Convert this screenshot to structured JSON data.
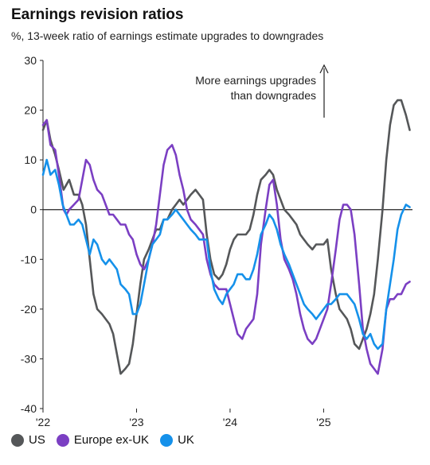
{
  "chart_data": {
    "type": "line",
    "title": "Earnings revision ratios",
    "subtitle": "%, 13-week ratio of earnings estimate upgrades to downgrades",
    "ylim": [
      -40,
      30
    ],
    "yticks": [
      30,
      20,
      10,
      0,
      -10,
      -20,
      -30,
      -40
    ],
    "xlim": [
      2022.0,
      2025.95
    ],
    "xticks": [
      {
        "value": 2022.0,
        "label": "'22"
      },
      {
        "value": 2023.0,
        "label": "'23"
      },
      {
        "value": 2024.0,
        "label": "'24"
      },
      {
        "value": 2025.0,
        "label": "'25"
      }
    ],
    "annotation": {
      "line1": "More earnings upgrades",
      "line2": "than downgrades"
    },
    "legend_position": "bottom-left",
    "series": [
      {
        "name": "US",
        "color": "#555759",
        "points": [
          [
            2022.0,
            16
          ],
          [
            2022.04,
            18
          ],
          [
            2022.08,
            14
          ],
          [
            2022.13,
            11
          ],
          [
            2022.17,
            8
          ],
          [
            2022.22,
            4
          ],
          [
            2022.28,
            6
          ],
          [
            2022.33,
            3
          ],
          [
            2022.38,
            3
          ],
          [
            2022.42,
            1
          ],
          [
            2022.46,
            -3
          ],
          [
            2022.5,
            -10
          ],
          [
            2022.54,
            -17
          ],
          [
            2022.58,
            -20
          ],
          [
            2022.63,
            -21
          ],
          [
            2022.67,
            -22
          ],
          [
            2022.71,
            -23
          ],
          [
            2022.75,
            -25
          ],
          [
            2022.79,
            -29
          ],
          [
            2022.83,
            -33
          ],
          [
            2022.88,
            -32
          ],
          [
            2022.92,
            -31
          ],
          [
            2022.96,
            -27
          ],
          [
            2023.0,
            -21
          ],
          [
            2023.04,
            -15
          ],
          [
            2023.08,
            -10
          ],
          [
            2023.13,
            -8
          ],
          [
            2023.17,
            -6
          ],
          [
            2023.21,
            -4
          ],
          [
            2023.25,
            -4
          ],
          [
            2023.29,
            -2
          ],
          [
            2023.33,
            -2
          ],
          [
            2023.38,
            0
          ],
          [
            2023.42,
            1
          ],
          [
            2023.46,
            2
          ],
          [
            2023.5,
            1
          ],
          [
            2023.54,
            2
          ],
          [
            2023.58,
            3
          ],
          [
            2023.63,
            4
          ],
          [
            2023.67,
            3
          ],
          [
            2023.71,
            2
          ],
          [
            2023.75,
            -5
          ],
          [
            2023.79,
            -10
          ],
          [
            2023.83,
            -13
          ],
          [
            2023.88,
            -14
          ],
          [
            2023.92,
            -13
          ],
          [
            2023.96,
            -11
          ],
          [
            2024.0,
            -8
          ],
          [
            2024.04,
            -6
          ],
          [
            2024.08,
            -5
          ],
          [
            2024.13,
            -5
          ],
          [
            2024.17,
            -5
          ],
          [
            2024.21,
            -4
          ],
          [
            2024.25,
            -1
          ],
          [
            2024.29,
            3
          ],
          [
            2024.33,
            6
          ],
          [
            2024.38,
            7
          ],
          [
            2024.42,
            8
          ],
          [
            2024.46,
            7
          ],
          [
            2024.5,
            4
          ],
          [
            2024.54,
            2
          ],
          [
            2024.58,
            0
          ],
          [
            2024.63,
            -1
          ],
          [
            2024.67,
            -2
          ],
          [
            2024.71,
            -3
          ],
          [
            2024.75,
            -5
          ],
          [
            2024.79,
            -6
          ],
          [
            2024.83,
            -7
          ],
          [
            2024.88,
            -8
          ],
          [
            2024.92,
            -7
          ],
          [
            2024.96,
            -7
          ],
          [
            2025.0,
            -7
          ],
          [
            2025.04,
            -6
          ],
          [
            2025.08,
            -12
          ],
          [
            2025.13,
            -17
          ],
          [
            2025.17,
            -20
          ],
          [
            2025.21,
            -21
          ],
          [
            2025.25,
            -22
          ],
          [
            2025.29,
            -24
          ],
          [
            2025.33,
            -27
          ],
          [
            2025.38,
            -28
          ],
          [
            2025.42,
            -26
          ],
          [
            2025.46,
            -24
          ],
          [
            2025.5,
            -21
          ],
          [
            2025.54,
            -17
          ],
          [
            2025.58,
            -10
          ],
          [
            2025.63,
            0
          ],
          [
            2025.67,
            10
          ],
          [
            2025.71,
            17
          ],
          [
            2025.75,
            21
          ],
          [
            2025.79,
            22
          ],
          [
            2025.83,
            22
          ],
          [
            2025.88,
            19
          ],
          [
            2025.92,
            16
          ]
        ]
      },
      {
        "name": "Europe ex-UK",
        "color": "#7b3fc3",
        "points": [
          [
            2022.0,
            17
          ],
          [
            2022.04,
            18
          ],
          [
            2022.08,
            13
          ],
          [
            2022.13,
            12
          ],
          [
            2022.17,
            7
          ],
          [
            2022.22,
            0
          ],
          [
            2022.25,
            -1
          ],
          [
            2022.28,
            0
          ],
          [
            2022.33,
            1
          ],
          [
            2022.38,
            2
          ],
          [
            2022.42,
            6
          ],
          [
            2022.46,
            10
          ],
          [
            2022.5,
            9
          ],
          [
            2022.54,
            6
          ],
          [
            2022.58,
            4
          ],
          [
            2022.63,
            3
          ],
          [
            2022.67,
            1
          ],
          [
            2022.71,
            -1
          ],
          [
            2022.75,
            -1
          ],
          [
            2022.79,
            -2
          ],
          [
            2022.83,
            -3
          ],
          [
            2022.88,
            -3
          ],
          [
            2022.92,
            -5
          ],
          [
            2022.96,
            -6
          ],
          [
            2023.0,
            -9
          ],
          [
            2023.04,
            -11
          ],
          [
            2023.08,
            -12
          ],
          [
            2023.13,
            -10
          ],
          [
            2023.17,
            -7
          ],
          [
            2023.21,
            -3
          ],
          [
            2023.25,
            3
          ],
          [
            2023.29,
            9
          ],
          [
            2023.33,
            12
          ],
          [
            2023.38,
            13
          ],
          [
            2023.42,
            11
          ],
          [
            2023.46,
            7
          ],
          [
            2023.5,
            4
          ],
          [
            2023.54,
            0
          ],
          [
            2023.58,
            -2
          ],
          [
            2023.63,
            -3
          ],
          [
            2023.67,
            -4
          ],
          [
            2023.71,
            -5
          ],
          [
            2023.75,
            -10
          ],
          [
            2023.79,
            -13
          ],
          [
            2023.83,
            -15
          ],
          [
            2023.88,
            -16
          ],
          [
            2023.92,
            -16
          ],
          [
            2023.96,
            -16
          ],
          [
            2024.0,
            -19
          ],
          [
            2024.04,
            -22
          ],
          [
            2024.08,
            -25
          ],
          [
            2024.13,
            -26
          ],
          [
            2024.17,
            -24
          ],
          [
            2024.21,
            -23
          ],
          [
            2024.25,
            -22
          ],
          [
            2024.29,
            -17
          ],
          [
            2024.33,
            -7
          ],
          [
            2024.38,
            0
          ],
          [
            2024.42,
            5
          ],
          [
            2024.46,
            6
          ],
          [
            2024.5,
            1
          ],
          [
            2024.54,
            -6
          ],
          [
            2024.58,
            -10
          ],
          [
            2024.63,
            -12
          ],
          [
            2024.67,
            -14
          ],
          [
            2024.71,
            -17
          ],
          [
            2024.75,
            -21
          ],
          [
            2024.79,
            -24
          ],
          [
            2024.83,
            -26
          ],
          [
            2024.88,
            -27
          ],
          [
            2024.92,
            -26
          ],
          [
            2024.96,
            -24
          ],
          [
            2025.0,
            -22
          ],
          [
            2025.04,
            -20
          ],
          [
            2025.08,
            -15
          ],
          [
            2025.13,
            -8
          ],
          [
            2025.17,
            -2
          ],
          [
            2025.21,
            1
          ],
          [
            2025.25,
            1
          ],
          [
            2025.29,
            0
          ],
          [
            2025.33,
            -5
          ],
          [
            2025.38,
            -15
          ],
          [
            2025.42,
            -24
          ],
          [
            2025.46,
            -28
          ],
          [
            2025.5,
            -31
          ],
          [
            2025.54,
            -32
          ],
          [
            2025.58,
            -33
          ],
          [
            2025.63,
            -28
          ],
          [
            2025.67,
            -20
          ],
          [
            2025.71,
            -18
          ],
          [
            2025.75,
            -18
          ],
          [
            2025.79,
            -17
          ],
          [
            2025.83,
            -17
          ],
          [
            2025.88,
            -15
          ],
          [
            2025.92,
            -14.5
          ]
        ]
      },
      {
        "name": "UK",
        "color": "#1591ea",
        "points": [
          [
            2022.0,
            7
          ],
          [
            2022.04,
            10
          ],
          [
            2022.08,
            7
          ],
          [
            2022.13,
            8
          ],
          [
            2022.17,
            5
          ],
          [
            2022.21,
            1
          ],
          [
            2022.25,
            -1
          ],
          [
            2022.29,
            -3
          ],
          [
            2022.33,
            -3
          ],
          [
            2022.38,
            -2
          ],
          [
            2022.42,
            -3
          ],
          [
            2022.46,
            -6
          ],
          [
            2022.5,
            -9
          ],
          [
            2022.54,
            -6
          ],
          [
            2022.58,
            -7
          ],
          [
            2022.63,
            -10
          ],
          [
            2022.67,
            -11
          ],
          [
            2022.71,
            -10
          ],
          [
            2022.75,
            -11
          ],
          [
            2022.79,
            -12
          ],
          [
            2022.83,
            -15
          ],
          [
            2022.88,
            -16
          ],
          [
            2022.92,
            -17
          ],
          [
            2022.96,
            -21
          ],
          [
            2023.0,
            -21
          ],
          [
            2023.04,
            -19
          ],
          [
            2023.08,
            -15
          ],
          [
            2023.13,
            -10
          ],
          [
            2023.17,
            -7
          ],
          [
            2023.21,
            -6
          ],
          [
            2023.25,
            -5
          ],
          [
            2023.29,
            -2
          ],
          [
            2023.33,
            -2
          ],
          [
            2023.38,
            -1
          ],
          [
            2023.42,
            0
          ],
          [
            2023.46,
            -1
          ],
          [
            2023.5,
            -2
          ],
          [
            2023.54,
            -3
          ],
          [
            2023.58,
            -4
          ],
          [
            2023.63,
            -5
          ],
          [
            2023.67,
            -6
          ],
          [
            2023.71,
            -6
          ],
          [
            2023.75,
            -6
          ],
          [
            2023.79,
            -12
          ],
          [
            2023.83,
            -16
          ],
          [
            2023.88,
            -18
          ],
          [
            2023.92,
            -19
          ],
          [
            2023.96,
            -17
          ],
          [
            2024.0,
            -16
          ],
          [
            2024.04,
            -15
          ],
          [
            2024.08,
            -13
          ],
          [
            2024.13,
            -13
          ],
          [
            2024.17,
            -14
          ],
          [
            2024.21,
            -14
          ],
          [
            2024.25,
            -12
          ],
          [
            2024.29,
            -9
          ],
          [
            2024.33,
            -5
          ],
          [
            2024.38,
            -3
          ],
          [
            2024.42,
            -1
          ],
          [
            2024.46,
            -2
          ],
          [
            2024.5,
            -4
          ],
          [
            2024.54,
            -7
          ],
          [
            2024.58,
            -9
          ],
          [
            2024.63,
            -11
          ],
          [
            2024.67,
            -13
          ],
          [
            2024.71,
            -15
          ],
          [
            2024.75,
            -17
          ],
          [
            2024.79,
            -19
          ],
          [
            2024.83,
            -20
          ],
          [
            2024.88,
            -21
          ],
          [
            2024.92,
            -22
          ],
          [
            2024.96,
            -21
          ],
          [
            2025.0,
            -20
          ],
          [
            2025.04,
            -19
          ],
          [
            2025.08,
            -19
          ],
          [
            2025.13,
            -18
          ],
          [
            2025.17,
            -17
          ],
          [
            2025.21,
            -17
          ],
          [
            2025.25,
            -17
          ],
          [
            2025.29,
            -18
          ],
          [
            2025.33,
            -19
          ],
          [
            2025.38,
            -22
          ],
          [
            2025.42,
            -25
          ],
          [
            2025.46,
            -26
          ],
          [
            2025.5,
            -25
          ],
          [
            2025.54,
            -27
          ],
          [
            2025.58,
            -28
          ],
          [
            2025.63,
            -27
          ],
          [
            2025.67,
            -20
          ],
          [
            2025.71,
            -15
          ],
          [
            2025.75,
            -10
          ],
          [
            2025.79,
            -4
          ],
          [
            2025.83,
            -1
          ],
          [
            2025.88,
            1
          ],
          [
            2025.92,
            0.5
          ]
        ]
      }
    ]
  }
}
